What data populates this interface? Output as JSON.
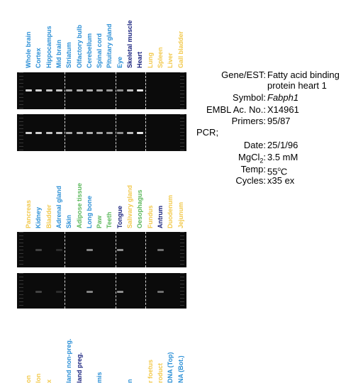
{
  "top_lanes": [
    {
      "label": "Whole brain",
      "color": "#2b8fd6"
    },
    {
      "label": "Cortex",
      "color": "#2b8fd6"
    },
    {
      "label": "Hippocampus",
      "color": "#2b8fd6"
    },
    {
      "label": "Mid brain",
      "color": "#2b8fd6"
    },
    {
      "label": "Striatum",
      "color": "#2b8fd6"
    },
    {
      "label": "Olfactory bulb",
      "color": "#2b8fd6"
    },
    {
      "label": "Cerebellum",
      "color": "#2b8fd6"
    },
    {
      "label": "Spinal cord",
      "color": "#2b8fd6"
    },
    {
      "label": "Pituitary gland",
      "color": "#2b8fd6"
    },
    {
      "label": "Eye",
      "color": "#2b8fd6"
    },
    {
      "label": "Skeletal muscle",
      "color": "#1a237e"
    },
    {
      "label": "Heart",
      "color": "#1a237e"
    },
    {
      "label": "Lung",
      "color": "#f2c94c"
    },
    {
      "label": "Spleen",
      "color": "#f2c94c"
    },
    {
      "label": "Liver",
      "color": "#f2c94c"
    },
    {
      "label": "Gall bladder",
      "color": "#f2c94c"
    }
  ],
  "mid_lanes": [
    {
      "label": "Pancreas",
      "color": "#f2c94c"
    },
    {
      "label": "Kidney",
      "color": "#2b8fd6"
    },
    {
      "label": "Bladder",
      "color": "#f2c94c"
    },
    {
      "label": "Adrenal gland",
      "color": "#2b8fd6"
    },
    {
      "label": "Skin",
      "color": "#2b8fd6"
    },
    {
      "label": "Adipose tissue",
      "color": "#5cb85c"
    },
    {
      "label": "Long bone",
      "color": "#2b8fd6"
    },
    {
      "label": "Paw",
      "color": "#5cb85c"
    },
    {
      "label": "Teeth",
      "color": "#5cb85c"
    },
    {
      "label": "Tongue",
      "color": "#1a237e"
    },
    {
      "label": "Salivary gland",
      "color": "#f2c94c"
    },
    {
      "label": "Oesophagus",
      "color": "#5cb85c"
    },
    {
      "label": "Fundus",
      "color": "#f2c94c"
    },
    {
      "label": "Antrum",
      "color": "#1a237e"
    },
    {
      "label": "Duodenum",
      "color": "#f2c94c"
    },
    {
      "label": "Jejunum",
      "color": "#f2c94c"
    }
  ],
  "bottom_lanes": [
    {
      "label": "on",
      "color": "#f2c94c"
    },
    {
      "label": "lon",
      "color": "#f2c94c"
    },
    {
      "label": "x",
      "color": "#f2c94c"
    },
    {
      "label": "",
      "color": "#2b8fd6"
    },
    {
      "label": "land non-preg.",
      "color": "#2b8fd6"
    },
    {
      "label": "land preg.",
      "color": "#1a237e"
    },
    {
      "label": "",
      "color": "#2b8fd6"
    },
    {
      "label": "mis",
      "color": "#2b8fd6"
    },
    {
      "label": "",
      "color": "#2b8fd6"
    },
    {
      "label": "",
      "color": "#2b8fd6"
    },
    {
      "label": "n",
      "color": "#2b8fd6"
    },
    {
      "label": "",
      "color": "#2b8fd6"
    },
    {
      "label": "r foetus",
      "color": "#f2c94c"
    },
    {
      "label": "roduct",
      "color": "#f2c94c"
    },
    {
      "label": "DNA (Top)",
      "color": "#2b8fd6"
    },
    {
      "label": "NA (Bot.)",
      "color": "#2b8fd6"
    }
  ],
  "gels": {
    "top_band_intensity": [
      0.9,
      0.9,
      0.85,
      0.85,
      0.7,
      0.75,
      0.75,
      0.7,
      0.65,
      0.6,
      0.8,
      1.0,
      0,
      0,
      0,
      0
    ],
    "mid_band_intensity": [
      0,
      0.25,
      0,
      0.15,
      0,
      0,
      0.55,
      0,
      0,
      0.6,
      0,
      0,
      0,
      0.45,
      0,
      0
    ]
  },
  "info": {
    "gene_key": "Gene/EST:",
    "gene_val_1": "Fatty acid binding",
    "gene_val_2": "protein heart 1",
    "symbol_key": "Symbol:",
    "symbol_val": "Fabph1",
    "embl_key": "EMBL Ac. No.:",
    "embl_val": "X14961",
    "primers_key": "Primers:",
    "primers_val": "95/87",
    "pcr": "PCR;",
    "date_key": "Date:",
    "date_val": "25/1/96",
    "mgcl_key_main": "MgCl",
    "mgcl_key_sub": "2",
    "mgcl_key_end": ":",
    "mgcl_val": "3.5 mM",
    "temp_key": "Temp:",
    "temp_val_main": "55",
    "temp_val_sup": "o",
    "temp_val_end": "C",
    "cycles_key": "Cycles:",
    "cycles_val": "x35 ex"
  }
}
